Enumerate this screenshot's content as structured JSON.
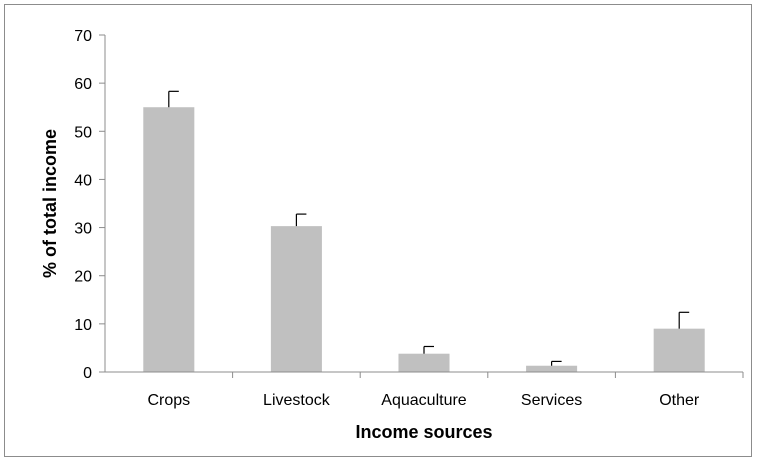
{
  "chart_data": {
    "type": "bar",
    "title": "",
    "xlabel": "Income sources",
    "ylabel": "% of total income",
    "categories": [
      "Crops",
      "Livestock",
      "Aquaculture",
      "Services",
      "Other"
    ],
    "values": [
      55,
      30.3,
      3.8,
      1.3,
      9
    ],
    "error_upper": [
      3.3,
      2.5,
      1.5,
      0.9,
      3.4
    ],
    "ylim": [
      0,
      70
    ],
    "yticks": [
      0,
      10,
      20,
      30,
      40,
      50,
      60,
      70
    ],
    "grid": false,
    "legend": "none",
    "bar_color": "#c0c0c0",
    "error_bar_color": "#000000"
  }
}
